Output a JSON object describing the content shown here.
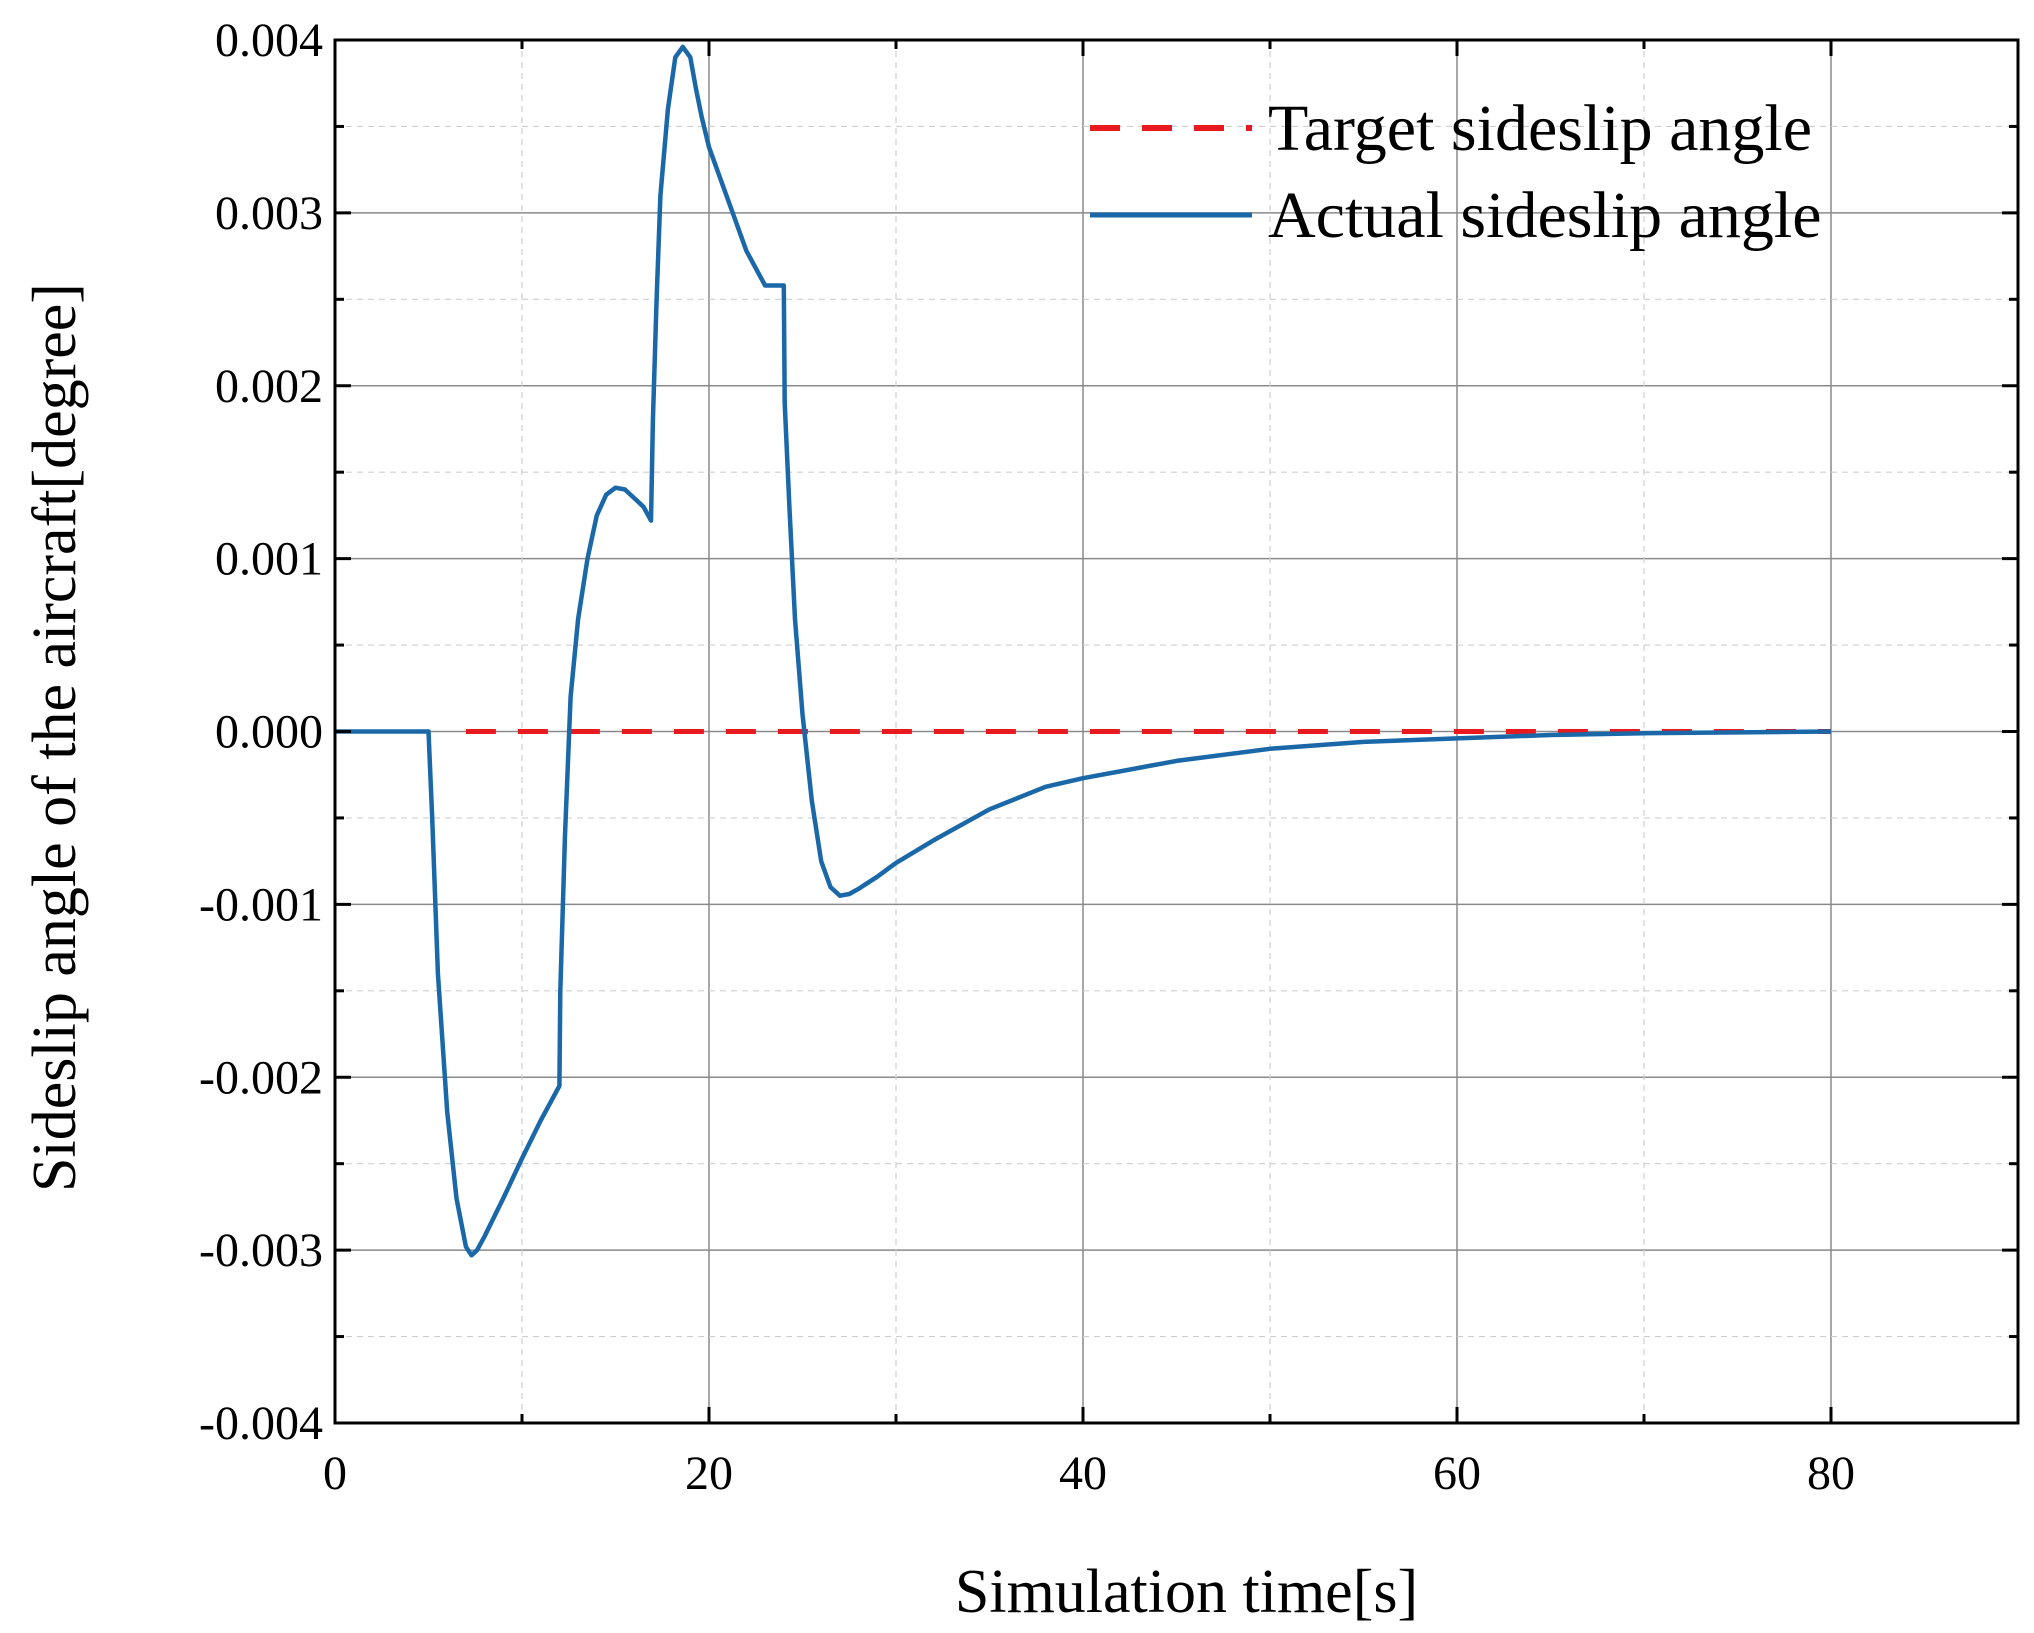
{
  "chart_data": {
    "type": "line",
    "xlabel": "Simulation time[s]",
    "ylabel": "Sideslip angle of the aircraft[degree]",
    "xlim": [
      0,
      90
    ],
    "ylim": [
      -0.004,
      0.004
    ],
    "xticks": [
      0,
      20,
      40,
      60,
      80
    ],
    "xtick_labels": [
      "0",
      "20",
      "40",
      "60",
      "80"
    ],
    "xminor": [
      10,
      30,
      50,
      70
    ],
    "yticks": [
      -0.004,
      -0.003,
      -0.002,
      -0.001,
      0.0,
      0.001,
      0.002,
      0.003,
      0.004
    ],
    "ytick_labels": [
      "-0.004",
      "-0.003",
      "-0.002",
      "-0.001",
      "0.000",
      "0.001",
      "0.002",
      "0.003",
      "0.004"
    ],
    "yminor": [
      -0.0035,
      -0.0025,
      -0.0015,
      -0.0005,
      0.0005,
      0.0015,
      0.0025,
      0.0035
    ],
    "grid": true,
    "legend_position": "top-right",
    "series": [
      {
        "name": "Target sideslip angle",
        "style": "dashed",
        "color": "#e8191f",
        "x": [
          7,
          80
        ],
        "y": [
          0.0,
          0.0
        ]
      },
      {
        "name": "Actual sideslip angle",
        "style": "solid",
        "color": "#1a68a8",
        "x": [
          0,
          5,
          5.2,
          5.5,
          6,
          6.5,
          7,
          7.3,
          7.6,
          8,
          9,
          10,
          11,
          12,
          12.05,
          12.3,
          12.6,
          13,
          13.5,
          14,
          14.5,
          15,
          15.5,
          16,
          16.5,
          16.9,
          17.0,
          17.2,
          17.4,
          17.8,
          18.2,
          18.6,
          19.0,
          19.3,
          19.6,
          20,
          21,
          22,
          23,
          24,
          24.05,
          24.3,
          24.6,
          25,
          25.5,
          26,
          26.5,
          27,
          27.5,
          28,
          29,
          30,
          32,
          35,
          38,
          40,
          45,
          50,
          55,
          60,
          65,
          70,
          75,
          80
        ],
        "y": [
          0.0,
          0.0,
          -0.0005,
          -0.0014,
          -0.0022,
          -0.0027,
          -0.00298,
          -0.00303,
          -0.003,
          -0.00292,
          -0.0027,
          -0.00247,
          -0.00225,
          -0.00205,
          -0.0015,
          -0.0006,
          0.0002,
          0.00065,
          0.001,
          0.00125,
          0.00137,
          0.00141,
          0.0014,
          0.00135,
          0.0013,
          0.00122,
          0.0018,
          0.0025,
          0.0031,
          0.0036,
          0.0039,
          0.00396,
          0.0039,
          0.00372,
          0.00356,
          0.00338,
          0.00308,
          0.00278,
          0.00258,
          0.00258,
          0.0019,
          0.0013,
          0.00065,
          0.0001,
          -0.0004,
          -0.00075,
          -0.0009,
          -0.00095,
          -0.00094,
          -0.00091,
          -0.00084,
          -0.00076,
          -0.00063,
          -0.00045,
          -0.00032,
          -0.00027,
          -0.00017,
          -0.0001,
          -6e-05,
          -4e-05,
          -2e-05,
          -1e-05,
          -5e-06,
          0.0
        ]
      }
    ]
  }
}
